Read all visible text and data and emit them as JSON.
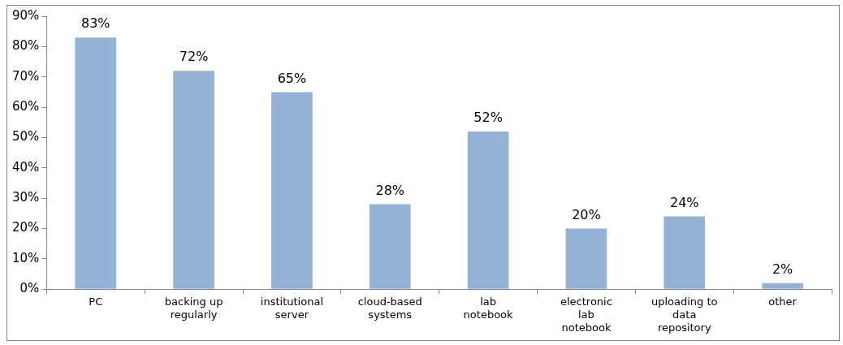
{
  "chart_data": {
    "type": "bar",
    "categories": [
      "PC",
      "backing up regularly",
      "institutional server",
      "cloud-based systems",
      "lab notebook",
      "electronic lab notebook",
      "uploading to data repository",
      "other"
    ],
    "values": [
      83,
      72,
      65,
      28,
      52,
      20,
      24,
      2
    ],
    "color": "#95b3d7",
    "value_labels": [
      "83%",
      "72%",
      "65%",
      "28%",
      "52%",
      "20%",
      "24%",
      "2%"
    ],
    "ylim": [
      0,
      90
    ],
    "yticks": [
      {
        "value": 0,
        "label": "0%"
      },
      {
        "value": 10,
        "label": "10%"
      },
      {
        "value": 20,
        "label": "20%"
      },
      {
        "value": 30,
        "label": "30%"
      },
      {
        "value": 40,
        "label": "40%"
      },
      {
        "value": 50,
        "label": "50%"
      },
      {
        "value": 60,
        "label": "60%"
      },
      {
        "value": 70,
        "label": "70%"
      },
      {
        "value": 80,
        "label": "80%"
      },
      {
        "value": 90,
        "label": "90%"
      }
    ],
    "grid": false,
    "legend": false
  }
}
